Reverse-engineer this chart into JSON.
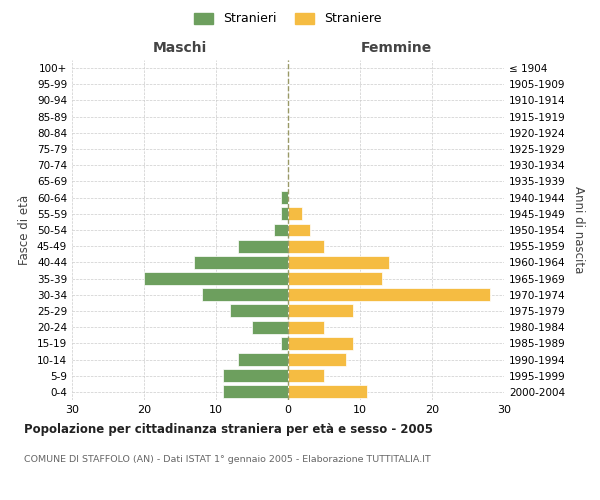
{
  "age_groups": [
    "0-4",
    "5-9",
    "10-14",
    "15-19",
    "20-24",
    "25-29",
    "30-34",
    "35-39",
    "40-44",
    "45-49",
    "50-54",
    "55-59",
    "60-64",
    "65-69",
    "70-74",
    "75-79",
    "80-84",
    "85-89",
    "90-94",
    "95-99",
    "100+"
  ],
  "birth_years": [
    "2000-2004",
    "1995-1999",
    "1990-1994",
    "1985-1989",
    "1980-1984",
    "1975-1979",
    "1970-1974",
    "1965-1969",
    "1960-1964",
    "1955-1959",
    "1950-1954",
    "1945-1949",
    "1940-1944",
    "1935-1939",
    "1930-1934",
    "1925-1929",
    "1920-1924",
    "1915-1919",
    "1910-1914",
    "1905-1909",
    "≤ 1904"
  ],
  "males": [
    9,
    9,
    7,
    1,
    5,
    8,
    12,
    20,
    13,
    7,
    2,
    1,
    1,
    0,
    0,
    0,
    0,
    0,
    0,
    0,
    0
  ],
  "females": [
    11,
    5,
    8,
    9,
    5,
    9,
    28,
    13,
    14,
    5,
    3,
    2,
    0,
    0,
    0,
    0,
    0,
    0,
    0,
    0,
    0
  ],
  "male_color": "#6d9f5e",
  "female_color": "#f5bc42",
  "background_color": "#ffffff",
  "grid_color": "#cccccc",
  "xlim": 30,
  "title": "Popolazione per cittadinanza straniera per età e sesso - 2005",
  "subtitle": "COMUNE DI STAFFOLO (AN) - Dati ISTAT 1° gennaio 2005 - Elaborazione TUTTITALIA.IT",
  "xlabel_left": "Maschi",
  "xlabel_right": "Femmine",
  "ylabel_left": "Fasce di età",
  "ylabel_right": "Anni di nascita",
  "legend_male": "Stranieri",
  "legend_female": "Straniere"
}
